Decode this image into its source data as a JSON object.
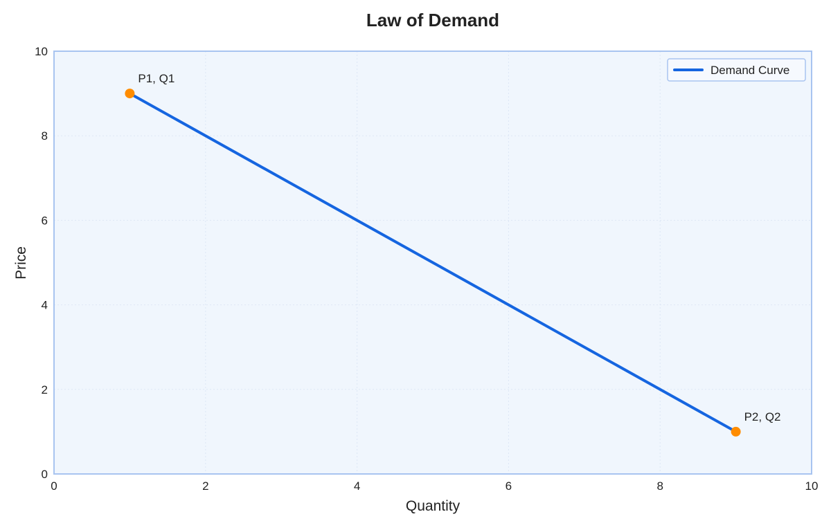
{
  "chart_data": {
    "type": "line",
    "title": "Law of Demand",
    "xlabel": "Quantity",
    "ylabel": "Price",
    "xlim": [
      0,
      10
    ],
    "ylim": [
      0,
      10
    ],
    "xticks": [
      0,
      2,
      4,
      6,
      8,
      10
    ],
    "yticks": [
      0,
      2,
      4,
      6,
      8,
      10
    ],
    "grid": true,
    "legend_position": "top-right",
    "series": [
      {
        "name": "Demand Curve",
        "x": [
          1,
          9
        ],
        "y": [
          9,
          1
        ],
        "color": "#1565e0"
      }
    ],
    "points": [
      {
        "x": 1,
        "y": 9,
        "label": "P1, Q1"
      },
      {
        "x": 9,
        "y": 1,
        "label": "P2, Q2"
      }
    ],
    "colors": {
      "line": "#1565e0",
      "point": "#ff8c00",
      "plot_background": "#f0f6fd",
      "plot_border": "#a8c4f0",
      "grid": "#dde7f5"
    }
  }
}
